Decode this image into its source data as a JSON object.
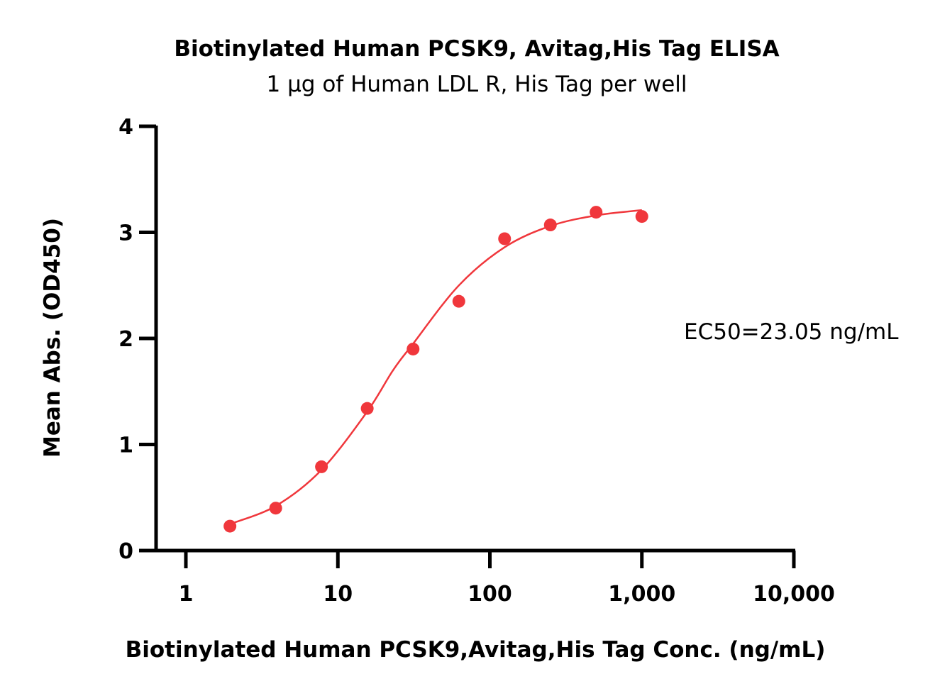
{
  "chart_data": {
    "type": "scatter",
    "title": "Biotinylated Human PCSK9, Avitag,His Tag ELISA",
    "subtitle": "1 μg of Human LDL R, His Tag per well",
    "xlabel": "Biotinylated Human PCSK9,Avitag,His Tag Conc. (ng/mL)",
    "ylabel": "Mean Abs. (OD450)",
    "x_scale": "log",
    "xlim": [
      1,
      10000
    ],
    "ylim": [
      0,
      4
    ],
    "x_ticks": [
      {
        "value": 1,
        "label": "1"
      },
      {
        "value": 10,
        "label": "10"
      },
      {
        "value": 100,
        "label": "100"
      },
      {
        "value": 1000,
        "label": "1,000"
      },
      {
        "value": 10000,
        "label": "10,000"
      }
    ],
    "y_ticks": [
      {
        "value": 0,
        "label": "0"
      },
      {
        "value": 1,
        "label": "1"
      },
      {
        "value": 2,
        "label": "2"
      },
      {
        "value": 3,
        "label": "3"
      },
      {
        "value": 4,
        "label": "4"
      }
    ],
    "grid": false,
    "series": [
      {
        "color": "#f0373c",
        "points": [
          {
            "x": 1.95,
            "y": 0.23
          },
          {
            "x": 3.9,
            "y": 0.4
          },
          {
            "x": 7.8,
            "y": 0.79
          },
          {
            "x": 15.6,
            "y": 1.34
          },
          {
            "x": 31.25,
            "y": 1.9
          },
          {
            "x": 62.5,
            "y": 2.35
          },
          {
            "x": 125,
            "y": 2.94
          },
          {
            "x": 250,
            "y": 3.07
          },
          {
            "x": 500,
            "y": 3.19
          },
          {
            "x": 1000,
            "y": 3.15
          }
        ],
        "fit_curve": [
          {
            "x": 1.95,
            "y": 0.25
          },
          {
            "x": 3.9,
            "y": 0.42
          },
          {
            "x": 7.8,
            "y": 0.76
          },
          {
            "x": 15.6,
            "y": 1.31
          },
          {
            "x": 23.05,
            "y": 1.7
          },
          {
            "x": 31.25,
            "y": 1.95
          },
          {
            "x": 62.5,
            "y": 2.5
          },
          {
            "x": 125,
            "y": 2.86
          },
          {
            "x": 250,
            "y": 3.06
          },
          {
            "x": 500,
            "y": 3.16
          },
          {
            "x": 1000,
            "y": 3.21
          }
        ]
      }
    ],
    "annotations": [
      {
        "text": "EC50=23.05 ng/mL"
      }
    ]
  }
}
